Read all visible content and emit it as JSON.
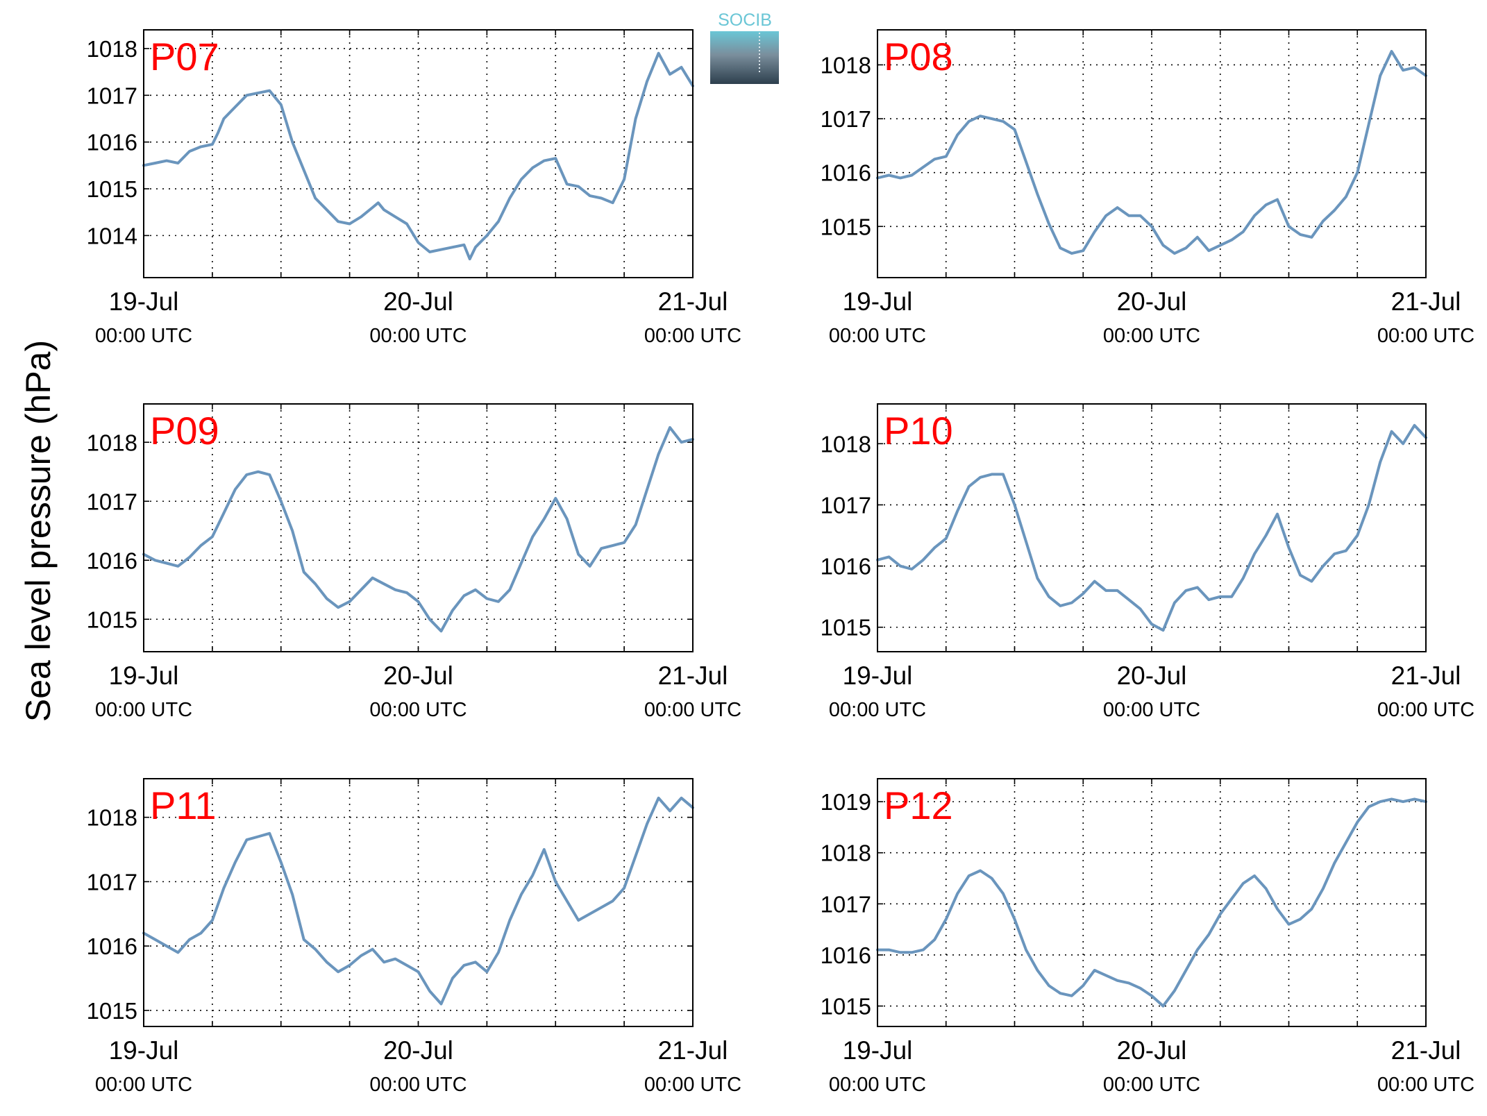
{
  "figure": {
    "ylabel": "Sea level pressure (hPa)",
    "logo": {
      "text": "SOCIB"
    },
    "colors": {
      "line": "#6a95bd",
      "panel_label": "#ff0000",
      "grid": "#000000",
      "background": "#ffffff"
    },
    "date_labels": [
      "19-Jul",
      "20-Jul",
      "21-Jul"
    ],
    "time_label": "00:00 UTC"
  },
  "chart_data": [
    {
      "type": "line",
      "title": "P07",
      "xlabel": "",
      "ylabel": "Sea level pressure (hPa)",
      "xlim": [
        0,
        48
      ],
      "ylim": [
        1013.1,
        1018.4
      ],
      "yticks": [
        1014,
        1015,
        1016,
        1017,
        1018
      ],
      "xticks": [
        0,
        24,
        48
      ],
      "xticklabels": [
        "19-Jul",
        "20-Jul",
        "21-Jul"
      ],
      "grid": true,
      "x": [
        0,
        1,
        2,
        3,
        4,
        5,
        6,
        6.5,
        7,
        8,
        9,
        10,
        11,
        12,
        13,
        14,
        15,
        16,
        17,
        18,
        19,
        20,
        20.5,
        21,
        22,
        23,
        23.5,
        24,
        25,
        26,
        27,
        28,
        28.5,
        29,
        30,
        31,
        32,
        33,
        34,
        35,
        36,
        37,
        38,
        39,
        40,
        41,
        42,
        43,
        44,
        45,
        46,
        47,
        48
      ],
      "values": [
        1015.5,
        1015.55,
        1015.6,
        1015.55,
        1015.8,
        1015.9,
        1015.95,
        1016.2,
        1016.5,
        1016.75,
        1017.0,
        1017.05,
        1017.1,
        1016.8,
        1016.0,
        1015.4,
        1014.8,
        1014.55,
        1014.3,
        1014.25,
        1014.4,
        1014.6,
        1014.7,
        1014.55,
        1014.4,
        1014.25,
        1014.05,
        1013.85,
        1013.65,
        1013.7,
        1013.75,
        1013.8,
        1013.5,
        1013.75,
        1014.0,
        1014.3,
        1014.8,
        1015.2,
        1015.45,
        1015.6,
        1015.65,
        1015.1,
        1015.05,
        1014.85,
        1014.8,
        1014.7,
        1015.2,
        1016.5,
        1017.3,
        1017.9,
        1017.45,
        1017.6,
        1017.2
      ]
    },
    {
      "type": "line",
      "title": "P08",
      "xlabel": "",
      "ylabel": "Sea level pressure (hPa)",
      "xlim": [
        0,
        48
      ],
      "ylim": [
        1014.05,
        1018.65
      ],
      "yticks": [
        1015,
        1016,
        1017,
        1018
      ],
      "xticks": [
        0,
        24,
        48
      ],
      "xticklabels": [
        "19-Jul",
        "20-Jul",
        "21-Jul"
      ],
      "grid": true,
      "x": [
        0,
        1,
        2,
        3,
        4,
        5,
        6,
        7,
        8,
        9,
        10,
        11,
        12,
        13,
        14,
        15,
        16,
        17,
        18,
        19,
        20,
        21,
        22,
        23,
        24,
        25,
        26,
        27,
        28,
        29,
        30,
        31,
        32,
        33,
        34,
        35,
        36,
        37,
        38,
        39,
        40,
        41,
        42,
        43,
        44,
        45,
        46,
        47,
        48
      ],
      "values": [
        1015.9,
        1015.95,
        1015.9,
        1015.95,
        1016.1,
        1016.25,
        1016.3,
        1016.7,
        1016.95,
        1017.05,
        1017.0,
        1016.95,
        1016.8,
        1016.2,
        1015.6,
        1015.05,
        1014.6,
        1014.5,
        1014.55,
        1014.9,
        1015.2,
        1015.35,
        1015.2,
        1015.2,
        1015.0,
        1014.65,
        1014.5,
        1014.6,
        1014.8,
        1014.55,
        1014.65,
        1014.75,
        1014.9,
        1015.2,
        1015.4,
        1015.5,
        1015.0,
        1014.85,
        1014.8,
        1015.1,
        1015.3,
        1015.55,
        1016.0,
        1016.9,
        1017.8,
        1018.25,
        1017.9,
        1017.95,
        1017.8
      ]
    },
    {
      "type": "line",
      "title": "P09",
      "xlabel": "",
      "ylabel": "Sea level pressure (hPa)",
      "xlim": [
        0,
        48
      ],
      "ylim": [
        1014.45,
        1018.65
      ],
      "yticks": [
        1015,
        1016,
        1017,
        1018
      ],
      "xticks": [
        0,
        24,
        48
      ],
      "xticklabels": [
        "19-Jul",
        "20-Jul",
        "21-Jul"
      ],
      "grid": true,
      "x": [
        0,
        1,
        2,
        3,
        4,
        5,
        6,
        7,
        8,
        9,
        10,
        11,
        12,
        13,
        14,
        15,
        16,
        17,
        18,
        19,
        20,
        21,
        22,
        23,
        24,
        25,
        26,
        27,
        28,
        29,
        30,
        31,
        32,
        33,
        34,
        35,
        36,
        37,
        38,
        39,
        40,
        41,
        42,
        43,
        44,
        45,
        46,
        47,
        48
      ],
      "values": [
        1016.1,
        1016.0,
        1015.95,
        1015.9,
        1016.05,
        1016.25,
        1016.4,
        1016.8,
        1017.2,
        1017.45,
        1017.5,
        1017.45,
        1017.0,
        1016.5,
        1015.8,
        1015.6,
        1015.35,
        1015.2,
        1015.3,
        1015.5,
        1015.7,
        1015.6,
        1015.5,
        1015.45,
        1015.3,
        1015.0,
        1014.8,
        1015.15,
        1015.4,
        1015.5,
        1015.35,
        1015.3,
        1015.5,
        1015.95,
        1016.4,
        1016.7,
        1017.05,
        1016.7,
        1016.1,
        1015.9,
        1016.2,
        1016.25,
        1016.3,
        1016.6,
        1017.2,
        1017.8,
        1018.25,
        1018.0,
        1018.05
      ]
    },
    {
      "type": "line",
      "title": "P10",
      "xlabel": "",
      "ylabel": "Sea level pressure (hPa)",
      "xlim": [
        0,
        48
      ],
      "ylim": [
        1014.6,
        1018.65
      ],
      "yticks": [
        1015,
        1016,
        1017,
        1018
      ],
      "xticks": [
        0,
        24,
        48
      ],
      "xticklabels": [
        "19-Jul",
        "20-Jul",
        "21-Jul"
      ],
      "grid": true,
      "x": [
        0,
        1,
        2,
        3,
        4,
        5,
        6,
        7,
        8,
        9,
        10,
        11,
        12,
        13,
        14,
        15,
        16,
        17,
        18,
        19,
        20,
        21,
        22,
        23,
        24,
        25,
        26,
        27,
        28,
        29,
        30,
        31,
        32,
        33,
        34,
        35,
        36,
        37,
        38,
        39,
        40,
        41,
        42,
        43,
        44,
        45,
        46,
        47,
        48
      ],
      "values": [
        1016.1,
        1016.15,
        1016.0,
        1015.95,
        1016.1,
        1016.3,
        1016.45,
        1016.9,
        1017.3,
        1017.45,
        1017.5,
        1017.5,
        1017.0,
        1016.4,
        1015.8,
        1015.5,
        1015.35,
        1015.4,
        1015.55,
        1015.75,
        1015.6,
        1015.6,
        1015.45,
        1015.3,
        1015.05,
        1014.95,
        1015.4,
        1015.6,
        1015.65,
        1015.45,
        1015.5,
        1015.5,
        1015.8,
        1016.2,
        1016.5,
        1016.85,
        1016.3,
        1015.85,
        1015.75,
        1016.0,
        1016.2,
        1016.25,
        1016.5,
        1017.0,
        1017.7,
        1018.2,
        1018.0,
        1018.3,
        1018.1
      ]
    },
    {
      "type": "line",
      "title": "P11",
      "xlabel": "",
      "ylabel": "Sea level pressure (hPa)",
      "xlim": [
        0,
        48
      ],
      "ylim": [
        1014.75,
        1018.6
      ],
      "yticks": [
        1015,
        1016,
        1017,
        1018
      ],
      "xticks": [
        0,
        24,
        48
      ],
      "xticklabels": [
        "19-Jul",
        "20-Jul",
        "21-Jul"
      ],
      "grid": true,
      "x": [
        0,
        1,
        2,
        3,
        4,
        5,
        6,
        7,
        8,
        9,
        10,
        11,
        12,
        13,
        14,
        15,
        16,
        17,
        18,
        19,
        20,
        21,
        22,
        23,
        24,
        25,
        26,
        27,
        28,
        29,
        30,
        31,
        32,
        33,
        34,
        35,
        36,
        37,
        38,
        39,
        40,
        41,
        42,
        43,
        44,
        45,
        46,
        47,
        48
      ],
      "values": [
        1016.2,
        1016.1,
        1016.0,
        1015.9,
        1016.1,
        1016.2,
        1016.4,
        1016.9,
        1017.3,
        1017.65,
        1017.7,
        1017.75,
        1017.3,
        1016.8,
        1016.1,
        1015.95,
        1015.75,
        1015.6,
        1015.7,
        1015.85,
        1015.95,
        1015.75,
        1015.8,
        1015.7,
        1015.6,
        1015.3,
        1015.1,
        1015.5,
        1015.7,
        1015.75,
        1015.6,
        1015.9,
        1016.4,
        1016.8,
        1017.1,
        1017.5,
        1017.0,
        1016.7,
        1016.4,
        1016.5,
        1016.6,
        1016.7,
        1016.9,
        1017.4,
        1017.9,
        1018.3,
        1018.1,
        1018.3,
        1018.15
      ]
    },
    {
      "type": "line",
      "title": "P12",
      "xlabel": "",
      "ylabel": "Sea level pressure (hPa)",
      "xlim": [
        0,
        48
      ],
      "ylim": [
        1014.6,
        1019.45
      ],
      "yticks": [
        1015,
        1016,
        1017,
        1018,
        1019
      ],
      "xticks": [
        0,
        24,
        48
      ],
      "xticklabels": [
        "19-Jul",
        "20-Jul",
        "21-Jul"
      ],
      "grid": true,
      "x": [
        0,
        1,
        2,
        3,
        4,
        5,
        6,
        7,
        8,
        9,
        10,
        11,
        12,
        13,
        14,
        15,
        16,
        17,
        18,
        19,
        20,
        21,
        22,
        23,
        24,
        25,
        26,
        27,
        28,
        29,
        30,
        31,
        32,
        33,
        34,
        35,
        36,
        37,
        38,
        39,
        40,
        41,
        42,
        43,
        44,
        45,
        46,
        47,
        48
      ],
      "values": [
        1016.1,
        1016.1,
        1016.05,
        1016.05,
        1016.1,
        1016.3,
        1016.7,
        1017.2,
        1017.55,
        1017.65,
        1017.5,
        1017.2,
        1016.7,
        1016.1,
        1015.7,
        1015.4,
        1015.25,
        1015.2,
        1015.4,
        1015.7,
        1015.6,
        1015.5,
        1015.45,
        1015.35,
        1015.2,
        1015.0,
        1015.3,
        1015.7,
        1016.1,
        1016.4,
        1016.8,
        1017.1,
        1017.4,
        1017.55,
        1017.3,
        1016.9,
        1016.6,
        1016.7,
        1016.9,
        1017.3,
        1017.8,
        1018.2,
        1018.6,
        1018.9,
        1019.0,
        1019.05,
        1019.0,
        1019.05,
        1019.0
      ]
    }
  ]
}
